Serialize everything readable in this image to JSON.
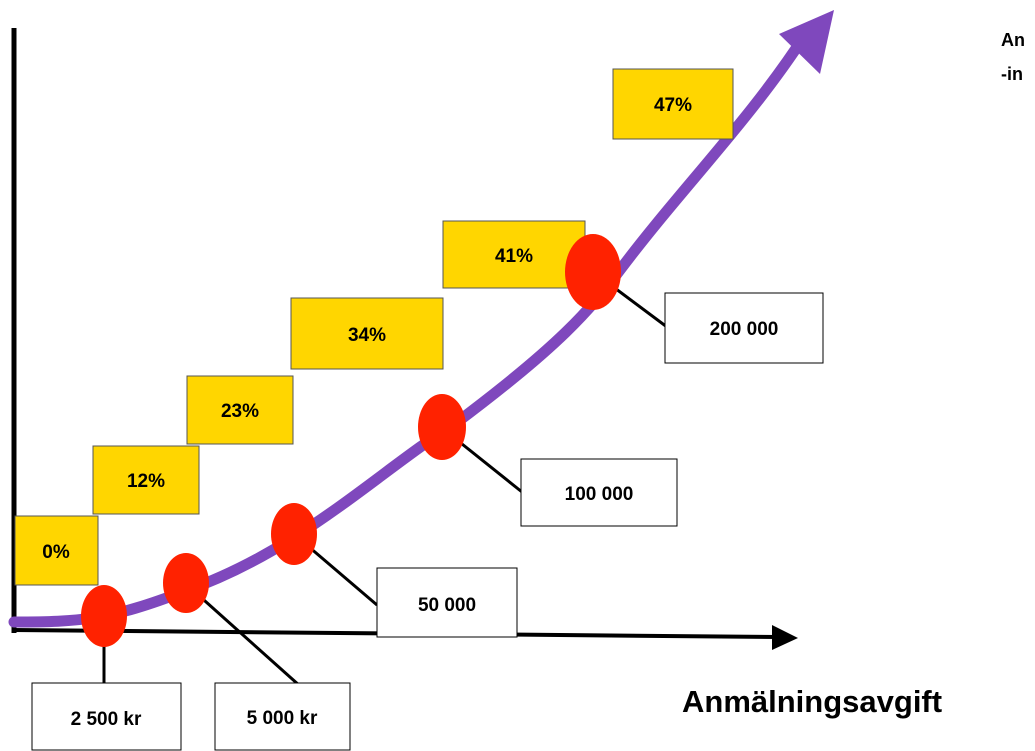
{
  "colors": {
    "curve": "#7f48bd",
    "marker": "#ff2200",
    "percent_box": "#ffd600",
    "axis": "#000000"
  },
  "axis": {
    "x_title": "Anmälningsavgift"
  },
  "side_note": {
    "line1": "An",
    "line2": "-in"
  },
  "tiers": [
    {
      "amount": "2 500 kr",
      "percent": "0%"
    },
    {
      "amount": "5 000 kr",
      "percent": "12%"
    },
    {
      "amount": "50 000",
      "percent": "23%"
    },
    {
      "amount": "100 000",
      "percent": "34%"
    },
    {
      "amount": "200 000",
      "percent": "41%"
    },
    {
      "amount": "",
      "percent": "47%"
    }
  ]
}
